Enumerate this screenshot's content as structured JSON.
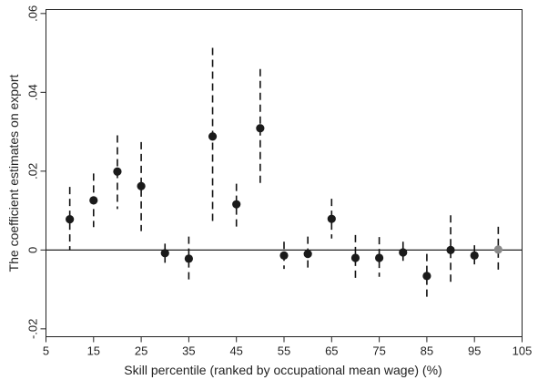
{
  "chart_data": {
    "type": "scatter",
    "title": "",
    "xlabel": "Skill percentile (ranked by occupational mean wage) (%)",
    "ylabel": "The coefficient estimates on export",
    "xlim": [
      5,
      105
    ],
    "ylim": [
      -0.022,
      0.061
    ],
    "x_ticks": [
      5,
      15,
      25,
      35,
      45,
      55,
      65,
      75,
      85,
      95,
      105
    ],
    "x_tick_labels": [
      "5",
      "15",
      "25",
      "35",
      "45",
      "55",
      "65",
      "75",
      "85",
      "95",
      "105"
    ],
    "y_ticks": [
      -0.02,
      0,
      0.02,
      0.04,
      0.06
    ],
    "y_tick_labels": [
      "-.02",
      "0",
      ".02",
      ".04",
      ".06"
    ],
    "reference_line_y": 0,
    "grid": false,
    "legend": "none",
    "marker_color": "#1a1a1a",
    "highlight_color": "#8a8a8a",
    "series": [
      {
        "points": [
          {
            "x": 10,
            "y": 0.0078,
            "lo": 0.0,
            "hi": 0.016
          },
          {
            "x": 15,
            "y": 0.0126,
            "lo": 0.0058,
            "hi": 0.0194
          },
          {
            "x": 20,
            "y": 0.0199,
            "lo": 0.0104,
            "hi": 0.0291
          },
          {
            "x": 25,
            "y": 0.0162,
            "lo": 0.0048,
            "hi": 0.0274
          },
          {
            "x": 30,
            "y": -0.0008,
            "lo": -0.0038,
            "hi": 0.0016
          },
          {
            "x": 35,
            "y": -0.0022,
            "lo": -0.0079,
            "hi": 0.0034
          },
          {
            "x": 40,
            "y": 0.0288,
            "lo": 0.0065,
            "hi": 0.0513
          },
          {
            "x": 45,
            "y": 0.0116,
            "lo": 0.0057,
            "hi": 0.0168
          },
          {
            "x": 50,
            "y": 0.0309,
            "lo": 0.0159,
            "hi": 0.0459
          },
          {
            "x": 55,
            "y": -0.0014,
            "lo": -0.0048,
            "hi": 0.0021
          },
          {
            "x": 60,
            "y": -0.001,
            "lo": -0.0054,
            "hi": 0.0034
          },
          {
            "x": 65,
            "y": 0.0079,
            "lo": 0.0029,
            "hi": 0.013
          },
          {
            "x": 70,
            "y": -0.002,
            "lo": -0.0078,
            "hi": 0.0038
          },
          {
            "x": 75,
            "y": -0.002,
            "lo": -0.0068,
            "hi": 0.0033
          },
          {
            "x": 80,
            "y": -0.0006,
            "lo": -0.0033,
            "hi": 0.0021
          },
          {
            "x": 85,
            "y": -0.0066,
            "lo": -0.0124,
            "hi": -0.001
          },
          {
            "x": 90,
            "y": 0.0,
            "lo": -0.0088,
            "hi": 0.0088
          },
          {
            "x": 95,
            "y": -0.0014,
            "lo": -0.0038,
            "hi": 0.0012
          },
          {
            "x": 100,
            "y": 0.0001,
            "lo": -0.0057,
            "hi": 0.0059,
            "highlight": true
          }
        ]
      }
    ]
  }
}
